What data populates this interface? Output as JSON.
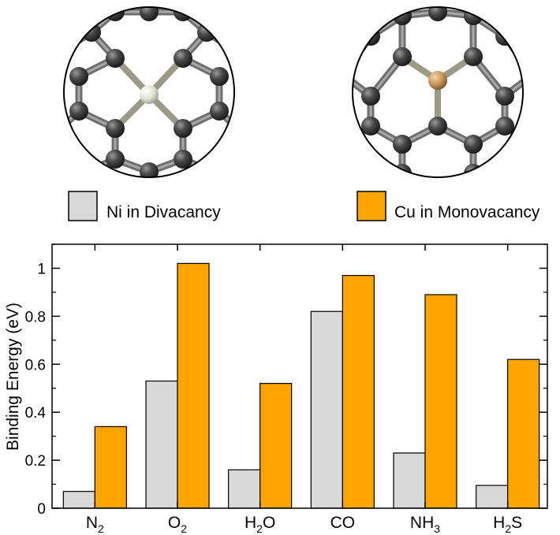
{
  "chart_data": {
    "type": "bar",
    "title": "",
    "xlabel": "",
    "ylabel": "Binding Energy (eV)",
    "ylim": [
      0,
      1.1
    ],
    "yticks": [
      "0",
      "0.2",
      "0.4",
      "0.6",
      "0.8",
      "1"
    ],
    "categories": [
      {
        "base": "N",
        "sub": "2",
        "post": ""
      },
      {
        "base": "O",
        "sub": "2",
        "post": ""
      },
      {
        "base": "H",
        "sub": "2",
        "post": "O"
      },
      {
        "base": "CO",
        "sub": "",
        "post": ""
      },
      {
        "base": "NH",
        "sub": "3",
        "post": ""
      },
      {
        "base": "H",
        "sub": "2",
        "post": "S"
      }
    ],
    "series": [
      {
        "name": "Ni in Divacancy",
        "color": "#d9d9d9",
        "values": [
          0.07,
          0.53,
          0.16,
          0.82,
          0.23,
          0.095
        ]
      },
      {
        "name": "Cu in Monovacancy",
        "color": "#ffa500",
        "values": [
          0.34,
          1.02,
          0.52,
          0.97,
          0.89,
          0.62
        ]
      }
    ],
    "legend": "top, above plot",
    "grid": false
  },
  "structures": [
    {
      "name": "ni-divacancy-structure",
      "dopant_color": "#e8ebe0"
    },
    {
      "name": "cu-monovacancy-structure",
      "dopant_color": "#d8aa6c"
    }
  ]
}
